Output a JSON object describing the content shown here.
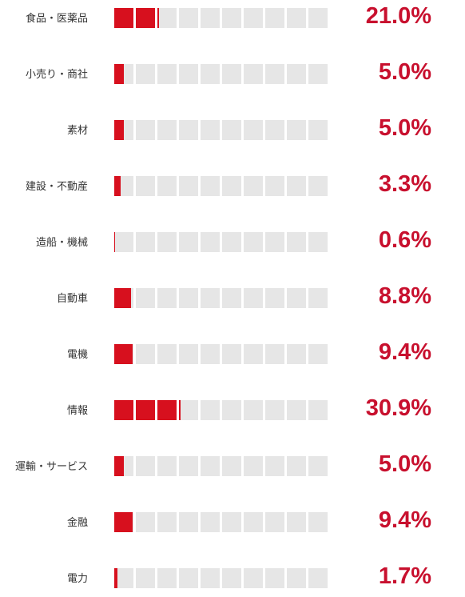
{
  "colors": {
    "accent": "#d7101e",
    "value_text": "#c8102e",
    "empty_cell": "#e6e6e6"
  },
  "chart_data": {
    "type": "bar",
    "orientation": "horizontal",
    "unit_cells": 10,
    "cell_value_percent": 10,
    "categories": [
      "食品・医薬品",
      "小売り・商社",
      "素材",
      "建設・不動産",
      "造船・機械",
      "自動車",
      "電機",
      "情報",
      "運輸・サービス",
      "金融",
      "電力"
    ],
    "values": [
      21.0,
      5.0,
      5.0,
      3.3,
      0.6,
      8.8,
      9.4,
      30.9,
      5.0,
      9.4,
      1.7
    ],
    "value_labels": [
      "21.0%",
      "5.0%",
      "5.0%",
      "3.3%",
      "0.6%",
      "8.8%",
      "9.4%",
      "30.9%",
      "5.0%",
      "9.4%",
      "1.7%"
    ]
  }
}
